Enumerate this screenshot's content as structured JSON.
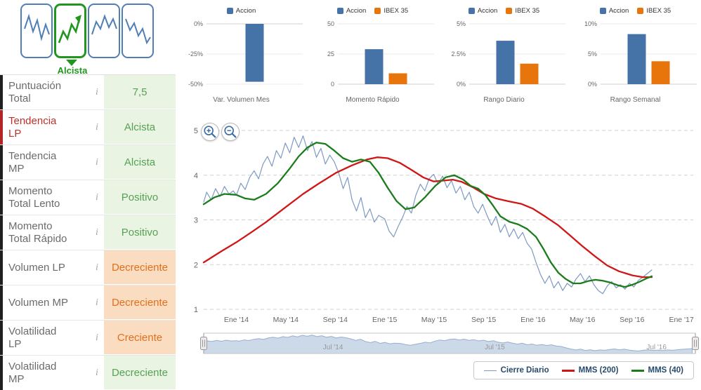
{
  "header": {
    "trend_label": "Alcista",
    "icons": [
      {
        "name": "volatile-trend-icon",
        "selected": false
      },
      {
        "name": "bullish-trend-icon",
        "selected": true
      },
      {
        "name": "choppy-up-trend-icon",
        "selected": false
      },
      {
        "name": "bearish-trend-icon",
        "selected": false
      }
    ]
  },
  "misc": {
    "info_glyph": "i",
    "icon_names": [
      "zoom-in-icon",
      "zoom-out-icon",
      "info-icon",
      "navigator-handle-icon"
    ]
  },
  "indicators": [
    {
      "label": "Puntuación Total",
      "value": "7,5",
      "state": "positive",
      "accent": "dark"
    },
    {
      "label": "Tendencia LP",
      "value": "Alcista",
      "state": "positive",
      "accent": "red"
    },
    {
      "label": "Tendencia MP",
      "value": "Alcista",
      "state": "positive",
      "accent": "dark"
    },
    {
      "label": "Momento Total Lento",
      "value": "Positivo",
      "state": "positive",
      "accent": "dark"
    },
    {
      "label": "Momento Total Rápido",
      "value": "Positivo",
      "state": "positive",
      "accent": "dark"
    },
    {
      "label": "Volumen LP",
      "value": "Decreciente",
      "state": "negative",
      "accent": "dark"
    },
    {
      "label": "Volumen MP",
      "value": "Decreciente",
      "state": "negative",
      "accent": "dark"
    },
    {
      "label": "Volatilidad LP",
      "value": "Creciente",
      "state": "negative",
      "accent": "dark"
    },
    {
      "label": "Volatilidad MP",
      "value": "Decreciente",
      "state": "positive",
      "accent": "dark"
    }
  ],
  "colors": {
    "accion": "#4572a7",
    "ibex": "#e8740c",
    "cierre": "#7d99c4",
    "mms200": "#d01717",
    "mms40": "#1a7c1a",
    "positive_bg": "#eaf4e2",
    "positive_text": "#56a156",
    "negative_bg": "#fadcc0",
    "negative_text": "#e0701e",
    "nav_fill": "#ccd9e9",
    "nav_stroke": "#97aecd",
    "grid": "#cfcfcf",
    "axis_text": "#666666",
    "legend_text": "#274b6d"
  },
  "mini_charts": [
    {
      "type": "bar",
      "title": "Var. Volumen Mes",
      "ymin": -50,
      "ymax": 0,
      "ticks": [
        {
          "label": "0%",
          "v": 0
        },
        {
          "label": "-25%",
          "v": -25
        },
        {
          "label": "-50%",
          "v": -50
        }
      ],
      "series": [
        {
          "name": "Accion",
          "color_key": "accion",
          "value": -48
        }
      ]
    },
    {
      "type": "bar",
      "title": "Momento Rápido",
      "ymin": 0,
      "ymax": 50,
      "ticks": [
        {
          "label": "50",
          "v": 50
        },
        {
          "label": "25",
          "v": 25
        },
        {
          "label": "0",
          "v": 0
        }
      ],
      "series": [
        {
          "name": "Accion",
          "color_key": "accion",
          "value": 29
        },
        {
          "name": "IBEX 35",
          "color_key": "ibex",
          "value": 9
        }
      ]
    },
    {
      "type": "bar",
      "title": "Rango Diario",
      "ymin": 0,
      "ymax": 5,
      "ticks": [
        {
          "label": "5%",
          "v": 5
        },
        {
          "label": "2.5%",
          "v": 2.5
        },
        {
          "label": "0%",
          "v": 0
        }
      ],
      "series": [
        {
          "name": "Accion",
          "color_key": "accion",
          "value": 3.6
        },
        {
          "name": "IBEX 35",
          "color_key": "ibex",
          "value": 1.7
        }
      ]
    },
    {
      "type": "bar",
      "title": "Rango Semanal",
      "ymin": 0,
      "ymax": 10,
      "ticks": [
        {
          "label": "10%",
          "v": 10
        },
        {
          "label": "5%",
          "v": 5
        },
        {
          "label": "0%",
          "v": 0
        }
      ],
      "series": [
        {
          "name": "Accion",
          "color_key": "accion",
          "value": 8.3
        },
        {
          "name": "IBEX 35",
          "color_key": "ibex",
          "value": 3.8
        }
      ]
    }
  ],
  "main_chart": {
    "type": "line",
    "tmin": 2013.78,
    "tmax": 2017.08,
    "ylim": [
      1,
      5
    ],
    "y_ticks": [
      1,
      2,
      3,
      4,
      5
    ],
    "x_ticks": [
      {
        "label": "Ene '14",
        "t": 2014.0
      },
      {
        "label": "May '14",
        "t": 2014.333
      },
      {
        "label": "Sep '14",
        "t": 2014.667
      },
      {
        "label": "Ene '15",
        "t": 2015.0
      },
      {
        "label": "May '15",
        "t": 2015.333
      },
      {
        "label": "Sep '15",
        "t": 2015.667
      },
      {
        "label": "Ene '16",
        "t": 2016.0
      },
      {
        "label": "May '16",
        "t": 2016.333
      },
      {
        "label": "Sep '16",
        "t": 2016.667
      },
      {
        "label": "Ene '17",
        "t": 2017.0
      }
    ],
    "series": {
      "cierre": [
        [
          2013.78,
          3.4
        ],
        [
          2013.8,
          3.62
        ],
        [
          2013.83,
          3.45
        ],
        [
          2013.86,
          3.7
        ],
        [
          2013.89,
          3.52
        ],
        [
          2013.92,
          3.75
        ],
        [
          2013.95,
          3.58
        ],
        [
          2013.98,
          3.65
        ],
        [
          2014.0,
          3.55
        ],
        [
          2014.03,
          3.82
        ],
        [
          2014.06,
          3.68
        ],
        [
          2014.09,
          3.95
        ],
        [
          2014.12,
          4.1
        ],
        [
          2014.15,
          3.92
        ],
        [
          2014.18,
          4.25
        ],
        [
          2014.21,
          4.42
        ],
        [
          2014.24,
          4.2
        ],
        [
          2014.27,
          4.55
        ],
        [
          2014.3,
          4.38
        ],
        [
          2014.33,
          4.72
        ],
        [
          2014.36,
          4.5
        ],
        [
          2014.39,
          4.85
        ],
        [
          2014.42,
          4.62
        ],
        [
          2014.45,
          4.88
        ],
        [
          2014.48,
          4.55
        ],
        [
          2014.51,
          4.75
        ],
        [
          2014.54,
          4.4
        ],
        [
          2014.57,
          4.6
        ],
        [
          2014.6,
          4.25
        ],
        [
          2014.63,
          4.45
        ],
        [
          2014.66,
          4.3
        ],
        [
          2014.69,
          4.05
        ],
        [
          2014.72,
          3.7
        ],
        [
          2014.75,
          3.95
        ],
        [
          2014.78,
          3.45
        ],
        [
          2014.81,
          3.2
        ],
        [
          2014.84,
          3.5
        ],
        [
          2014.87,
          3.05
        ],
        [
          2014.9,
          3.25
        ],
        [
          2014.93,
          2.95
        ],
        [
          2014.96,
          3.1
        ],
        [
          2015.0,
          3.02
        ],
        [
          2015.03,
          2.75
        ],
        [
          2015.06,
          2.62
        ],
        [
          2015.09,
          2.85
        ],
        [
          2015.12,
          3.05
        ],
        [
          2015.15,
          3.3
        ],
        [
          2015.18,
          3.15
        ],
        [
          2015.21,
          3.55
        ],
        [
          2015.24,
          3.8
        ],
        [
          2015.27,
          3.65
        ],
        [
          2015.3,
          3.92
        ],
        [
          2015.33,
          4.02
        ],
        [
          2015.36,
          3.8
        ],
        [
          2015.39,
          3.98
        ],
        [
          2015.42,
          3.72
        ],
        [
          2015.45,
          3.88
        ],
        [
          2015.48,
          3.6
        ],
        [
          2015.51,
          3.75
        ],
        [
          2015.54,
          3.45
        ],
        [
          2015.57,
          3.62
        ],
        [
          2015.6,
          3.3
        ],
        [
          2015.63,
          3.15
        ],
        [
          2015.66,
          3.35
        ],
        [
          2015.69,
          3.1
        ],
        [
          2015.72,
          2.88
        ],
        [
          2015.75,
          3.08
        ],
        [
          2015.78,
          2.72
        ],
        [
          2015.81,
          2.9
        ],
        [
          2015.84,
          2.62
        ],
        [
          2015.87,
          2.8
        ],
        [
          2015.9,
          2.58
        ],
        [
          2015.93,
          2.72
        ],
        [
          2015.96,
          2.48
        ],
        [
          2015.99,
          2.35
        ],
        [
          2016.02,
          2.05
        ],
        [
          2016.05,
          1.78
        ],
        [
          2016.08,
          1.58
        ],
        [
          2016.11,
          1.75
        ],
        [
          2016.14,
          1.48
        ],
        [
          2016.17,
          1.62
        ],
        [
          2016.2,
          1.42
        ],
        [
          2016.23,
          1.58
        ],
        [
          2016.26,
          1.5
        ],
        [
          2016.29,
          1.68
        ],
        [
          2016.32,
          1.8
        ],
        [
          2016.35,
          1.62
        ],
        [
          2016.38,
          1.75
        ],
        [
          2016.41,
          1.55
        ],
        [
          2016.44,
          1.42
        ],
        [
          2016.47,
          1.35
        ],
        [
          2016.5,
          1.52
        ],
        [
          2016.53,
          1.62
        ],
        [
          2016.56,
          1.48
        ],
        [
          2016.59,
          1.55
        ],
        [
          2016.62,
          1.45
        ],
        [
          2016.65,
          1.58
        ],
        [
          2016.68,
          1.5
        ],
        [
          2016.71,
          1.65
        ],
        [
          2016.74,
          1.72
        ],
        [
          2016.77,
          1.8
        ],
        [
          2016.8,
          1.88
        ]
      ],
      "mms200": [
        [
          2013.78,
          2.05
        ],
        [
          2013.9,
          2.3
        ],
        [
          2014.0,
          2.5
        ],
        [
          2014.1,
          2.72
        ],
        [
          2014.2,
          2.95
        ],
        [
          2014.33,
          3.28
        ],
        [
          2014.45,
          3.58
        ],
        [
          2014.55,
          3.8
        ],
        [
          2014.67,
          4.05
        ],
        [
          2014.78,
          4.22
        ],
        [
          2014.88,
          4.35
        ],
        [
          2014.95,
          4.4
        ],
        [
          2015.02,
          4.38
        ],
        [
          2015.1,
          4.28
        ],
        [
          2015.18,
          4.12
        ],
        [
          2015.26,
          3.95
        ],
        [
          2015.33,
          3.86
        ],
        [
          2015.4,
          3.88
        ],
        [
          2015.46,
          3.9
        ],
        [
          2015.52,
          3.85
        ],
        [
          2015.6,
          3.72
        ],
        [
          2015.67,
          3.58
        ],
        [
          2015.75,
          3.48
        ],
        [
          2015.83,
          3.42
        ],
        [
          2015.92,
          3.36
        ],
        [
          2016.0,
          3.25
        ],
        [
          2016.08,
          3.08
        ],
        [
          2016.17,
          2.88
        ],
        [
          2016.25,
          2.65
        ],
        [
          2016.33,
          2.42
        ],
        [
          2016.42,
          2.18
        ],
        [
          2016.5,
          1.98
        ],
        [
          2016.58,
          1.85
        ],
        [
          2016.67,
          1.76
        ],
        [
          2016.74,
          1.72
        ],
        [
          2016.8,
          1.72
        ]
      ],
      "mms40": [
        [
          2013.78,
          3.35
        ],
        [
          2013.85,
          3.5
        ],
        [
          2013.92,
          3.58
        ],
        [
          2014.0,
          3.56
        ],
        [
          2014.06,
          3.48
        ],
        [
          2014.12,
          3.45
        ],
        [
          2014.2,
          3.58
        ],
        [
          2014.28,
          3.82
        ],
        [
          2014.36,
          4.15
        ],
        [
          2014.42,
          4.42
        ],
        [
          2014.48,
          4.62
        ],
        [
          2014.54,
          4.73
        ],
        [
          2014.6,
          4.7
        ],
        [
          2014.66,
          4.55
        ],
        [
          2014.72,
          4.38
        ],
        [
          2014.78,
          4.3
        ],
        [
          2014.84,
          4.35
        ],
        [
          2014.9,
          4.3
        ],
        [
          2014.96,
          4.05
        ],
        [
          2015.02,
          3.72
        ],
        [
          2015.08,
          3.42
        ],
        [
          2015.14,
          3.24
        ],
        [
          2015.2,
          3.28
        ],
        [
          2015.27,
          3.5
        ],
        [
          2015.34,
          3.76
        ],
        [
          2015.41,
          3.95
        ],
        [
          2015.47,
          4.0
        ],
        [
          2015.53,
          3.9
        ],
        [
          2015.58,
          3.76
        ],
        [
          2015.63,
          3.7
        ],
        [
          2015.68,
          3.55
        ],
        [
          2015.73,
          3.32
        ],
        [
          2015.78,
          3.08
        ],
        [
          2015.84,
          2.96
        ],
        [
          2015.9,
          2.9
        ],
        [
          2015.96,
          2.8
        ],
        [
          2016.02,
          2.62
        ],
        [
          2016.07,
          2.35
        ],
        [
          2016.12,
          2.05
        ],
        [
          2016.17,
          1.82
        ],
        [
          2016.22,
          1.68
        ],
        [
          2016.27,
          1.58
        ],
        [
          2016.32,
          1.58
        ],
        [
          2016.37,
          1.63
        ],
        [
          2016.42,
          1.66
        ],
        [
          2016.47,
          1.64
        ],
        [
          2016.52,
          1.6
        ],
        [
          2016.57,
          1.54
        ],
        [
          2016.62,
          1.5
        ],
        [
          2016.67,
          1.55
        ],
        [
          2016.72,
          1.62
        ],
        [
          2016.77,
          1.7
        ],
        [
          2016.8,
          1.74
        ]
      ]
    }
  },
  "navigator": {
    "tmax": 2016.82,
    "labels": [
      {
        "label": "Jul '14",
        "t": 2014.5
      },
      {
        "label": "Jul '15",
        "t": 2015.5
      },
      {
        "label": "Jul '16",
        "t": 2016.5
      }
    ]
  },
  "legend": {
    "items": [
      {
        "key": "cierre-diario",
        "label": "Cierre Diario",
        "color": "#7d99c4",
        "width": 1
      },
      {
        "key": "mms-200",
        "label": "MMS (200)",
        "color": "#d01717",
        "width": 3
      },
      {
        "key": "mms-40",
        "label": "MMS (40)",
        "color": "#1a7c1a",
        "width": 3
      }
    ]
  }
}
